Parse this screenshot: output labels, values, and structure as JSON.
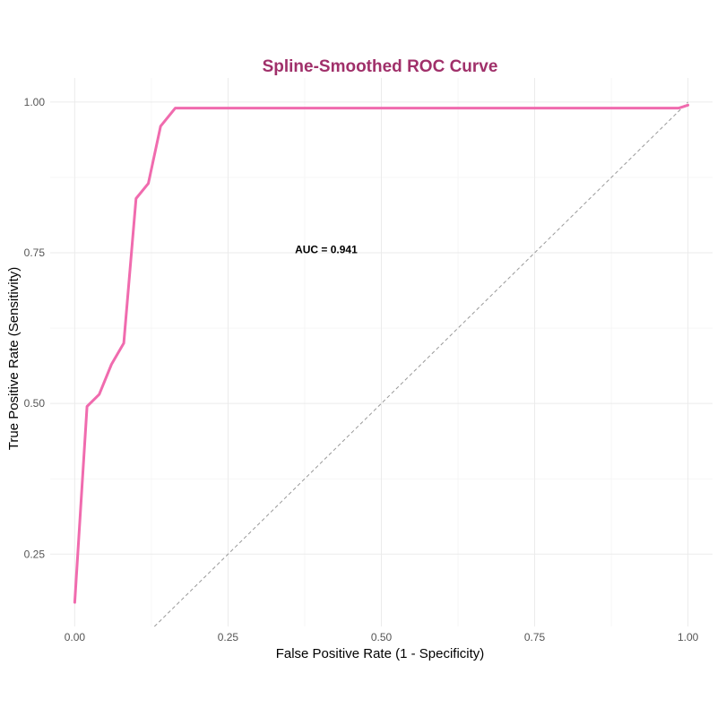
{
  "colors": {
    "title": "#A0306A",
    "curve": "#F06BAE",
    "reference_line": "#999999"
  },
  "chart_data": {
    "type": "line",
    "title": "Spline-Smoothed ROC Curve",
    "xlabel": "False Positive Rate (1 - Specificity)",
    "ylabel": "True Positive Rate (Sensitivity)",
    "xlim": [
      -0.04,
      1.04
    ],
    "ylim": [
      0.13,
      1.04
    ],
    "grid": true,
    "x_ticks": [
      0.0,
      0.25,
      0.5,
      0.75,
      1.0
    ],
    "x_tick_labels": [
      "0.00",
      "0.25",
      "0.50",
      "0.75",
      "1.00"
    ],
    "y_ticks": [
      0.25,
      0.5,
      0.75,
      1.0
    ],
    "y_tick_labels": [
      "0.25",
      "0.50",
      "0.75",
      "1.00"
    ],
    "series": [
      {
        "x": [
          0.0,
          0.02,
          0.04,
          0.06,
          0.08,
          0.1,
          0.12,
          0.14,
          0.164,
          0.3,
          0.5,
          0.7,
          0.9,
          0.985,
          1.0
        ],
        "y": [
          0.17,
          0.495,
          0.515,
          0.565,
          0.6,
          0.84,
          0.865,
          0.96,
          0.99,
          0.99,
          0.99,
          0.99,
          0.99,
          0.99,
          0.995
        ]
      }
    ],
    "reference_line": {
      "x": [
        0,
        1
      ],
      "y": [
        0,
        1
      ],
      "style": "dashed"
    },
    "annotations": [
      {
        "text": "AUC = 0.941",
        "x": 0.41,
        "y": 0.755
      }
    ]
  }
}
